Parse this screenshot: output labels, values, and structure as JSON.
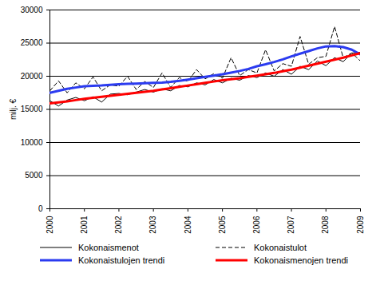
{
  "chart_data": {
    "type": "line",
    "y_label": "milj. €",
    "x": [
      2000,
      2000.25,
      2000.5,
      2000.75,
      2001,
      2001.25,
      2001.5,
      2001.75,
      2002,
      2002.25,
      2002.5,
      2002.75,
      2003,
      2003.25,
      2003.5,
      2003.75,
      2004,
      2004.25,
      2004.5,
      2004.75,
      2005,
      2005.25,
      2005.5,
      2005.75,
      2006,
      2006.25,
      2006.5,
      2006.75,
      2007,
      2007.25,
      2007.5,
      2007.75,
      2008,
      2008.25,
      2008.5,
      2008.75,
      2009
    ],
    "series": [
      {
        "name": "Kokonaismenot",
        "color": "#000000",
        "line_style": "solid",
        "values": [
          16300,
          15500,
          16400,
          16800,
          16300,
          16900,
          16100,
          17300,
          17400,
          17200,
          17600,
          18000,
          17600,
          18100,
          17800,
          18600,
          18400,
          19000,
          18700,
          19500,
          19000,
          19700,
          19400,
          20100,
          19800,
          20500,
          20000,
          21000,
          20300,
          21500,
          21000,
          22300,
          21600,
          22800,
          22200,
          23500,
          23600
        ]
      },
      {
        "name": "Kokonaistulot",
        "color": "#000000",
        "line_style": "dashed",
        "values": [
          17800,
          19300,
          17500,
          19000,
          18100,
          19900,
          17800,
          18700,
          18500,
          20000,
          18000,
          19200,
          18300,
          20500,
          18300,
          19800,
          19200,
          21000,
          19600,
          20400,
          19700,
          22800,
          20100,
          21000,
          20500,
          24000,
          20800,
          21900,
          21500,
          26000,
          21800,
          22800,
          23000,
          27500,
          22800,
          23500,
          22300
        ]
      },
      {
        "name": "Kokonaistulojen trendi",
        "color": "#2b3bf0",
        "line_style": "solid",
        "values": [
          17500,
          17800,
          18100,
          18300,
          18500,
          18550,
          18600,
          18700,
          18800,
          18850,
          18900,
          18950,
          19000,
          19050,
          19150,
          19300,
          19500,
          19700,
          19900,
          20100,
          20300,
          20550,
          20800,
          21100,
          21500,
          21800,
          22150,
          22550,
          23000,
          23400,
          23800,
          24200,
          24500,
          24550,
          24400,
          24000,
          23300
        ]
      },
      {
        "name": "Kokonaismenojen trendi",
        "color": "#ff0000",
        "line_style": "solid",
        "values": [
          15900,
          16050,
          16200,
          16400,
          16600,
          16750,
          16900,
          17050,
          17200,
          17350,
          17500,
          17650,
          17800,
          18000,
          18200,
          18400,
          18600,
          18800,
          19000,
          19200,
          19400,
          19550,
          19700,
          19900,
          20100,
          20300,
          20500,
          20750,
          21000,
          21300,
          21600,
          21900,
          22200,
          22500,
          22800,
          23150,
          23500
        ]
      }
    ],
    "xlim": [
      2000,
      2009
    ],
    "xticks": [
      2000,
      2001,
      2002,
      2003,
      2004,
      2005,
      2006,
      2007,
      2008,
      2009
    ],
    "ylim": [
      0,
      30000
    ],
    "yticks": [
      0,
      5000,
      10000,
      15000,
      20000,
      25000,
      30000
    ],
    "grid": true,
    "legend": "bottom"
  }
}
